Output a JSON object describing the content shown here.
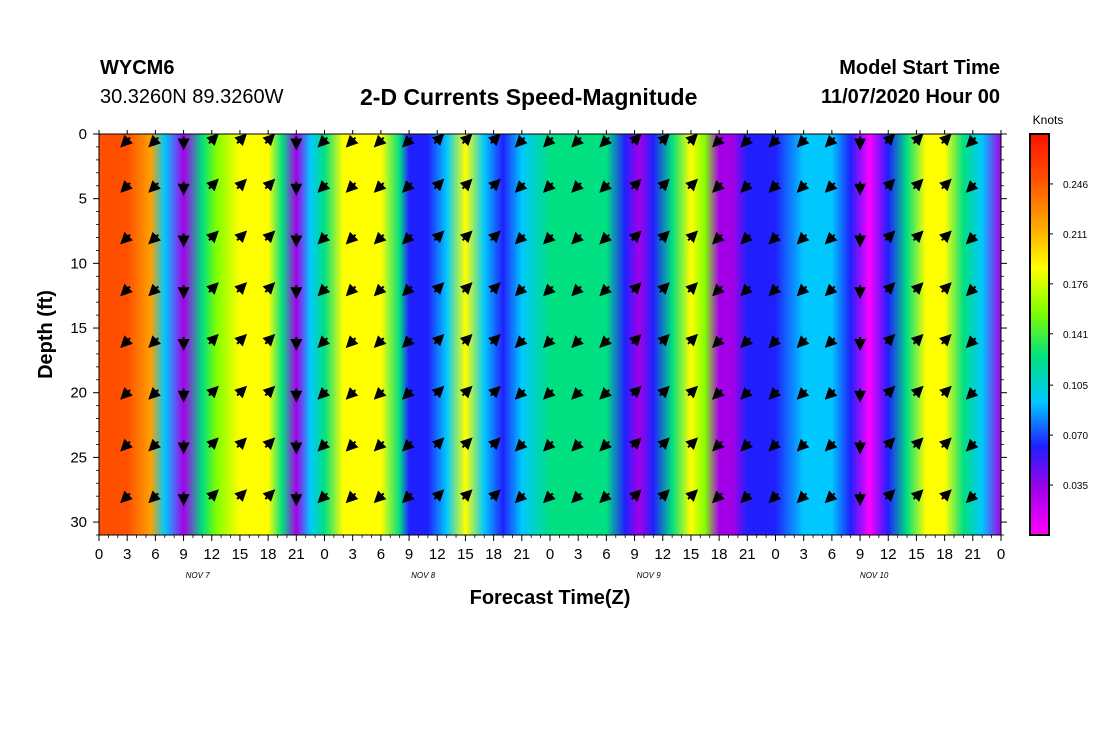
{
  "header": {
    "station": "WYCM6",
    "coords": "30.3260N 89.3260W",
    "title": "2-D Currents Speed-Magnitude",
    "model_start_label": "Model Start Time",
    "model_start_value": "11/07/2020 Hour 00"
  },
  "chart_data": {
    "type": "heatmap",
    "title": "2-D Currents Speed-Magnitude",
    "xlabel": "Forecast Time(Z)",
    "ylabel": "Depth (ft)",
    "x_tick_labels": [
      "0",
      "3",
      "6",
      "9",
      "12",
      "15",
      "18",
      "21",
      "0",
      "3",
      "6",
      "9",
      "12",
      "15",
      "18",
      "21",
      "0",
      "3",
      "6",
      "9",
      "12",
      "15",
      "18",
      "21",
      "0",
      "3",
      "6",
      "9",
      "12",
      "15",
      "18",
      "21",
      "0"
    ],
    "day_labels": [
      "NOV 7",
      "NOV 8",
      "NOV 9",
      "NOV 10"
    ],
    "xlim_hours": [
      0,
      96
    ],
    "y_ticks": [
      0,
      5,
      10,
      15,
      20,
      25,
      30
    ],
    "ylim": [
      0,
      31
    ],
    "y_inverted": true,
    "colorbar": {
      "unit": "Knots",
      "ticks": [
        "0.246",
        "0.211",
        "0.176",
        "0.141",
        "0.105",
        "0.070",
        "0.035"
      ],
      "range": [
        0.0,
        0.281
      ],
      "colors": [
        "#ff00ff",
        "#a400e8",
        "#2020ff",
        "#00c8ff",
        "#00e080",
        "#80ff00",
        "#ffff00",
        "#ffa000",
        "#ff5000",
        "#ff1000"
      ]
    },
    "speed_by_hour": [
      {
        "t": 0,
        "v": 0.24
      },
      {
        "t": 3,
        "v": 0.24
      },
      {
        "t": 5.5,
        "v": 0.22
      },
      {
        "t": 7,
        "v": 0.1
      },
      {
        "t": 9,
        "v": 0.03
      },
      {
        "t": 11,
        "v": 0.11
      },
      {
        "t": 12.5,
        "v": 0.15
      },
      {
        "t": 15,
        "v": 0.19
      },
      {
        "t": 18,
        "v": 0.18
      },
      {
        "t": 19.5,
        "v": 0.14
      },
      {
        "t": 21,
        "v": 0.04
      },
      {
        "t": 22.5,
        "v": 0.09
      },
      {
        "t": 24,
        "v": 0.13
      },
      {
        "t": 26,
        "v": 0.18
      },
      {
        "t": 28,
        "v": 0.2
      },
      {
        "t": 30,
        "v": 0.19
      },
      {
        "t": 32,
        "v": 0.12
      },
      {
        "t": 33,
        "v": 0.06
      },
      {
        "t": 35,
        "v": 0.06
      },
      {
        "t": 37,
        "v": 0.1
      },
      {
        "t": 39,
        "v": 0.19
      },
      {
        "t": 41,
        "v": 0.1
      },
      {
        "t": 43,
        "v": 0.06
      },
      {
        "t": 45,
        "v": 0.08
      },
      {
        "t": 48,
        "v": 0.11
      },
      {
        "t": 51,
        "v": 0.14
      },
      {
        "t": 54,
        "v": 0.12
      },
      {
        "t": 56,
        "v": 0.05
      },
      {
        "t": 57.5,
        "v": 0.03
      },
      {
        "t": 59,
        "v": 0.06
      },
      {
        "t": 61,
        "v": 0.12
      },
      {
        "t": 63,
        "v": 0.19
      },
      {
        "t": 64.5,
        "v": 0.17
      },
      {
        "t": 66,
        "v": 0.04
      },
      {
        "t": 67.5,
        "v": 0.03
      },
      {
        "t": 69,
        "v": 0.05
      },
      {
        "t": 72,
        "v": 0.06
      },
      {
        "t": 75,
        "v": 0.09
      },
      {
        "t": 78,
        "v": 0.1
      },
      {
        "t": 80,
        "v": 0.05
      },
      {
        "t": 82,
        "v": 0.01
      },
      {
        "t": 84,
        "v": 0.05
      },
      {
        "t": 86,
        "v": 0.14
      },
      {
        "t": 88,
        "v": 0.18
      },
      {
        "t": 90,
        "v": 0.19
      },
      {
        "t": 92,
        "v": 0.14
      },
      {
        "t": 94,
        "v": 0.08
      },
      {
        "t": 96,
        "v": 0.04
      }
    ],
    "vector_rows_ft": [
      0.5,
      4,
      8,
      12,
      16,
      20,
      24,
      28
    ],
    "vector_columns": [
      {
        "t": 3,
        "dir": "sw"
      },
      {
        "t": 6,
        "dir": "sw"
      },
      {
        "t": 9,
        "dir": "s"
      },
      {
        "t": 12,
        "dir": "ne"
      },
      {
        "t": 15,
        "dir": "ne"
      },
      {
        "t": 18,
        "dir": "ne"
      },
      {
        "t": 21,
        "dir": "s"
      },
      {
        "t": 24,
        "dir": "sw"
      },
      {
        "t": 27,
        "dir": "sw"
      },
      {
        "t": 30,
        "dir": "sw"
      },
      {
        "t": 33,
        "dir": "sw"
      },
      {
        "t": 36,
        "dir": "ne"
      },
      {
        "t": 39,
        "dir": "ne"
      },
      {
        "t": 42,
        "dir": "ne"
      },
      {
        "t": 45,
        "dir": "sw"
      },
      {
        "t": 48,
        "dir": "sw"
      },
      {
        "t": 51,
        "dir": "sw"
      },
      {
        "t": 54,
        "dir": "sw"
      },
      {
        "t": 57,
        "dir": "ne"
      },
      {
        "t": 60,
        "dir": "ne"
      },
      {
        "t": 63,
        "dir": "ne"
      },
      {
        "t": 66,
        "dir": "sw"
      },
      {
        "t": 69,
        "dir": "sw"
      },
      {
        "t": 72,
        "dir": "sw"
      },
      {
        "t": 75,
        "dir": "sw"
      },
      {
        "t": 78,
        "dir": "sw"
      },
      {
        "t": 81,
        "dir": "s"
      },
      {
        "t": 84,
        "dir": "ne"
      },
      {
        "t": 87,
        "dir": "ne"
      },
      {
        "t": 90,
        "dir": "ne"
      },
      {
        "t": 93,
        "dir": "sw"
      }
    ]
  }
}
